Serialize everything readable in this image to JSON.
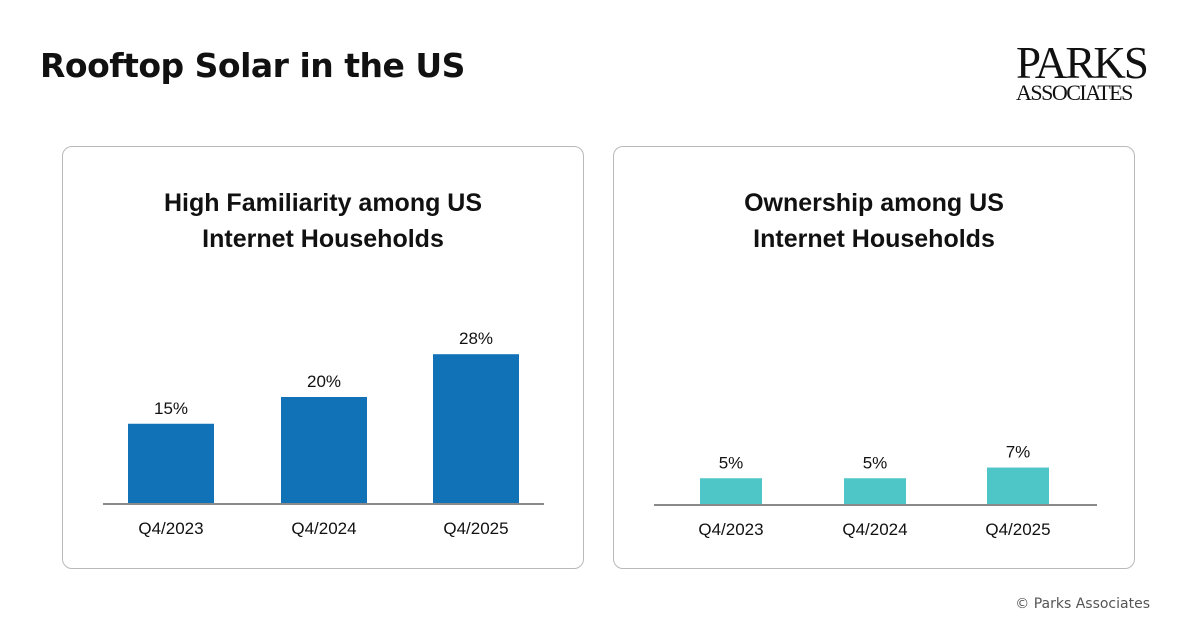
{
  "page": {
    "title": "Rooftop Solar in the US",
    "logo_line1": "PARKS",
    "logo_line2": "ASSOCIATES",
    "copyright": "© Parks Associates"
  },
  "chart_data": [
    {
      "type": "bar",
      "title": "High Familiarity among US\nInternet Households",
      "categories": [
        "Q4/2023",
        "Q4/2024",
        "Q4/2025"
      ],
      "values": [
        15,
        20,
        28
      ],
      "data_labels": [
        "15%",
        "20%",
        "28%"
      ],
      "color": "#1272b8",
      "ylim": [
        0,
        30
      ],
      "grid": false,
      "legend": "none"
    },
    {
      "type": "bar",
      "title": "Ownership among US\nInternet Households",
      "categories": [
        "Q4/2023",
        "Q4/2024",
        "Q4/2025"
      ],
      "values": [
        5,
        5,
        7
      ],
      "data_labels": [
        "5%",
        "5%",
        "7%"
      ],
      "color": "#4ec5c7",
      "ylim": [
        0,
        30
      ],
      "grid": false,
      "legend": "none"
    }
  ]
}
